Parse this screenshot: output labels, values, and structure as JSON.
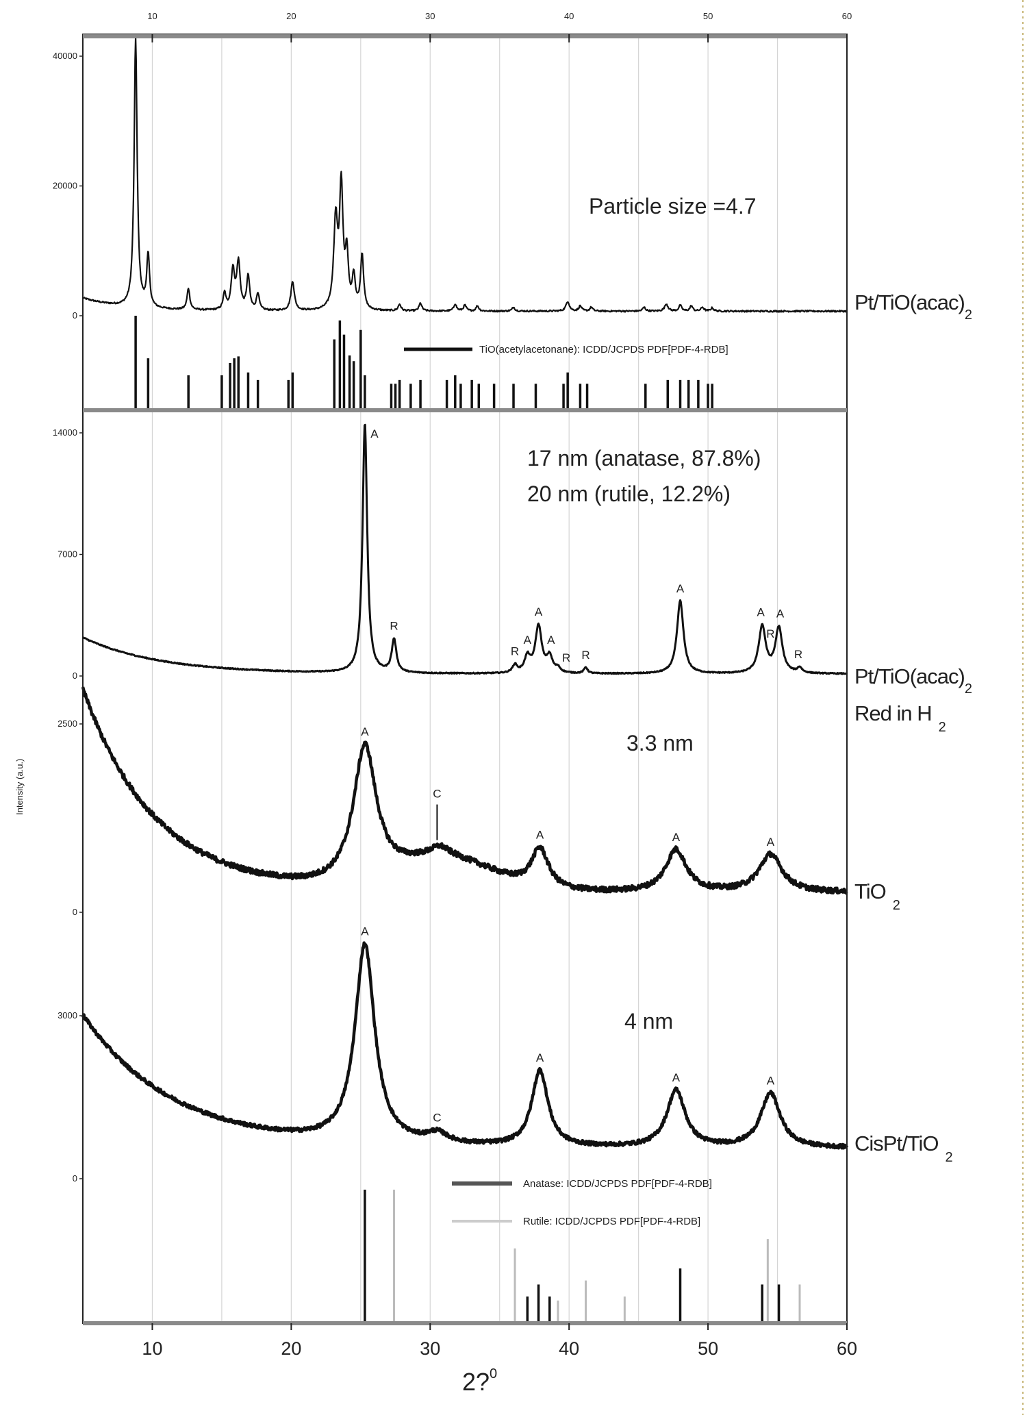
{
  "chart_data": {
    "type": "line",
    "title": "",
    "xlabel": "2?",
    "xlabel_sup": "0",
    "ylabel": "Intensity (a.u.)",
    "xlim": [
      5,
      60
    ],
    "xticks": [
      10,
      20,
      30,
      40,
      50,
      60
    ],
    "xtick_labels": [
      "10",
      "20",
      "30",
      "40",
      "50",
      "60"
    ],
    "grid": true,
    "grid_step": 5,
    "panels": [
      {
        "name": "Pt/TiO(acac)2",
        "label": {
          "main": "Pt/TiO(acac)",
          "sub": "2"
        },
        "yticks": [
          0,
          20000,
          40000
        ],
        "ytick_labels": [
          "0",
          "20000",
          "40000"
        ],
        "annotation": [
          "Particle size    =4.7"
        ],
        "background": {
          "base": 700,
          "amp": 2000,
          "decay": 3
        },
        "noise": 250,
        "peaks": [
          {
            "x": 8.8,
            "h": 41500,
            "w": 0.13
          },
          {
            "x": 9.7,
            "h": 8000,
            "w": 0.12
          },
          {
            "x": 12.6,
            "h": 3300,
            "w": 0.12
          },
          {
            "x": 15.2,
            "h": 2500,
            "w": 0.12
          },
          {
            "x": 15.8,
            "h": 6000,
            "w": 0.15
          },
          {
            "x": 16.2,
            "h": 7200,
            "w": 0.15
          },
          {
            "x": 16.9,
            "h": 5200,
            "w": 0.13
          },
          {
            "x": 17.6,
            "h": 2600,
            "w": 0.12
          },
          {
            "x": 20.1,
            "h": 4500,
            "w": 0.15
          },
          {
            "x": 23.2,
            "h": 13500,
            "w": 0.17
          },
          {
            "x": 23.6,
            "h": 18500,
            "w": 0.15
          },
          {
            "x": 24.0,
            "h": 8000,
            "w": 0.13
          },
          {
            "x": 24.5,
            "h": 5000,
            "w": 0.13
          },
          {
            "x": 25.1,
            "h": 8500,
            "w": 0.13
          },
          {
            "x": 27.8,
            "h": 1000,
            "w": 0.12
          },
          {
            "x": 29.3,
            "h": 1200,
            "w": 0.12
          },
          {
            "x": 31.8,
            "h": 1100,
            "w": 0.12
          },
          {
            "x": 32.5,
            "h": 900,
            "w": 0.12
          },
          {
            "x": 33.4,
            "h": 800,
            "w": 0.12
          },
          {
            "x": 36.0,
            "h": 600,
            "w": 0.12
          },
          {
            "x": 39.9,
            "h": 1500,
            "w": 0.15
          },
          {
            "x": 40.8,
            "h": 800,
            "w": 0.12
          },
          {
            "x": 41.6,
            "h": 600,
            "w": 0.12
          },
          {
            "x": 45.4,
            "h": 600,
            "w": 0.12
          },
          {
            "x": 47.0,
            "h": 1100,
            "w": 0.15
          },
          {
            "x": 48.0,
            "h": 900,
            "w": 0.12
          },
          {
            "x": 48.8,
            "h": 800,
            "w": 0.12
          },
          {
            "x": 49.6,
            "h": 600,
            "w": 0.12
          },
          {
            "x": 50.3,
            "h": 500,
            "w": 0.12
          }
        ],
        "peak_labels": [],
        "reference": {
          "legend": [
            {
              "text": "TiO(acetylacetonane): ICDD/JCPDS PDF[PDF-4-RDB]",
              "color": "#111111"
            }
          ],
          "bars": [
            {
              "x": 8.8,
              "h": 100,
              "color": "#111111"
            },
            {
              "x": 9.7,
              "h": 55,
              "color": "#111111"
            },
            {
              "x": 12.6,
              "h": 37,
              "color": "#111111"
            },
            {
              "x": 15.0,
              "h": 37,
              "color": "#111111"
            },
            {
              "x": 15.6,
              "h": 50,
              "color": "#111111"
            },
            {
              "x": 15.9,
              "h": 55,
              "color": "#111111"
            },
            {
              "x": 16.2,
              "h": 57,
              "color": "#111111"
            },
            {
              "x": 16.9,
              "h": 40,
              "color": "#111111"
            },
            {
              "x": 17.6,
              "h": 32,
              "color": "#111111"
            },
            {
              "x": 19.8,
              "h": 32,
              "color": "#111111"
            },
            {
              "x": 20.1,
              "h": 40,
              "color": "#111111"
            },
            {
              "x": 23.1,
              "h": 75,
              "color": "#111111"
            },
            {
              "x": 23.5,
              "h": 95,
              "color": "#111111"
            },
            {
              "x": 23.8,
              "h": 80,
              "color": "#111111"
            },
            {
              "x": 24.2,
              "h": 58,
              "color": "#111111"
            },
            {
              "x": 24.5,
              "h": 52,
              "color": "#111111"
            },
            {
              "x": 25.0,
              "h": 85,
              "color": "#111111"
            },
            {
              "x": 25.3,
              "h": 37,
              "color": "#111111"
            },
            {
              "x": 27.2,
              "h": 28,
              "color": "#111111"
            },
            {
              "x": 27.5,
              "h": 28,
              "color": "#111111"
            },
            {
              "x": 27.8,
              "h": 32,
              "color": "#111111"
            },
            {
              "x": 28.6,
              "h": 28,
              "color": "#111111"
            },
            {
              "x": 29.3,
              "h": 32,
              "color": "#111111"
            },
            {
              "x": 31.2,
              "h": 32,
              "color": "#111111"
            },
            {
              "x": 31.8,
              "h": 37,
              "color": "#111111"
            },
            {
              "x": 32.2,
              "h": 28,
              "color": "#111111"
            },
            {
              "x": 33.0,
              "h": 32,
              "color": "#111111"
            },
            {
              "x": 33.5,
              "h": 28,
              "color": "#111111"
            },
            {
              "x": 34.6,
              "h": 28,
              "color": "#111111"
            },
            {
              "x": 36.0,
              "h": 28,
              "color": "#111111"
            },
            {
              "x": 37.6,
              "h": 28,
              "color": "#111111"
            },
            {
              "x": 39.6,
              "h": 28,
              "color": "#111111"
            },
            {
              "x": 39.9,
              "h": 40,
              "color": "#111111"
            },
            {
              "x": 40.8,
              "h": 28,
              "color": "#111111"
            },
            {
              "x": 41.3,
              "h": 28,
              "color": "#111111"
            },
            {
              "x": 45.5,
              "h": 28,
              "color": "#111111"
            },
            {
              "x": 47.1,
              "h": 32,
              "color": "#111111"
            },
            {
              "x": 48.0,
              "h": 32,
              "color": "#111111"
            },
            {
              "x": 48.6,
              "h": 32,
              "color": "#111111"
            },
            {
              "x": 49.3,
              "h": 32,
              "color": "#111111"
            },
            {
              "x": 50.0,
              "h": 28,
              "color": "#111111"
            },
            {
              "x": 50.3,
              "h": 28,
              "color": "#111111"
            }
          ]
        }
      },
      {
        "name": "Pt/TiO(acac)2 Red in H2",
        "label": {
          "main": "Pt/TiO(acac)",
          "sub": "2"
        },
        "label2": {
          "main": "Red in H",
          "sub": "2"
        },
        "yticks": [
          0,
          7000,
          14000
        ],
        "ytick_labels": [
          "0",
          "7000",
          "14000"
        ],
        "annotation": [
          "17 nm (anatase, 87.8%)",
          "20 nm (rutile, 12.2%)"
        ],
        "background": {
          "base": 120,
          "amp": 2100,
          "decay": 5.5
        },
        "noise": 60,
        "peaks": [
          {
            "x": 25.3,
            "h": 14400,
            "w": 0.2
          },
          {
            "x": 27.4,
            "h": 1900,
            "w": 0.2
          },
          {
            "x": 36.1,
            "h": 450,
            "w": 0.2
          },
          {
            "x": 37.0,
            "h": 900,
            "w": 0.25
          },
          {
            "x": 37.8,
            "h": 2700,
            "w": 0.28
          },
          {
            "x": 38.6,
            "h": 900,
            "w": 0.25
          },
          {
            "x": 39.2,
            "h": 250,
            "w": 0.2
          },
          {
            "x": 41.2,
            "h": 350,
            "w": 0.15
          },
          {
            "x": 48.0,
            "h": 4200,
            "w": 0.28
          },
          {
            "x": 53.9,
            "h": 2700,
            "w": 0.3
          },
          {
            "x": 55.1,
            "h": 2600,
            "w": 0.3
          },
          {
            "x": 56.6,
            "h": 300,
            "w": 0.2
          }
        ],
        "peak_labels": [
          {
            "x": 25.3,
            "text": "A",
            "dx": 14,
            "top": true
          },
          {
            "x": 27.4,
            "text": "R"
          },
          {
            "x": 36.1,
            "text": "R"
          },
          {
            "x": 37.0,
            "text": "A"
          },
          {
            "x": 37.8,
            "text": "A"
          },
          {
            "x": 38.7,
            "text": "A"
          },
          {
            "x": 39.8,
            "text": "R"
          },
          {
            "x": 41.2,
            "text": "R"
          },
          {
            "x": 48.0,
            "text": "A"
          },
          {
            "x": 53.8,
            "text": "A"
          },
          {
            "x": 54.5,
            "text": "R"
          },
          {
            "x": 55.2,
            "text": "A"
          },
          {
            "x": 56.5,
            "text": "R"
          }
        ]
      },
      {
        "name": "TiO2",
        "label": {
          "main": "TiO",
          "sub": "2"
        },
        "yticks": [
          0,
          2500
        ],
        "ytick_labels": [
          "0",
          "2500"
        ],
        "annotation": [
          "3.3 nm"
        ],
        "background": {
          "base": 260,
          "amp": 2700,
          "decay": 5.2,
          "hump": {
            "x": 31,
            "h": 420,
            "w": 5
          }
        },
        "noise": 70,
        "peaks": [
          {
            "x": 25.3,
            "h": 1800,
            "w": 1.0
          },
          {
            "x": 30.7,
            "h": 120,
            "w": 0.8
          },
          {
            "x": 37.9,
            "h": 520,
            "w": 0.75
          },
          {
            "x": 47.7,
            "h": 560,
            "w": 0.9
          },
          {
            "x": 54.5,
            "h": 500,
            "w": 1.0
          }
        ],
        "peak_labels": [
          {
            "x": 25.3,
            "text": "A"
          },
          {
            "x": 30.5,
            "text": "C",
            "arrow": true
          },
          {
            "x": 37.9,
            "text": "A"
          },
          {
            "x": 47.7,
            "text": "A"
          },
          {
            "x": 54.5,
            "text": "A"
          }
        ]
      },
      {
        "name": "CisPt/TiO2",
        "label": {
          "main": "CisPt/TiO",
          "sub": "2"
        },
        "yticks": [
          0,
          3000
        ],
        "ytick_labels": [
          "0",
          "3000"
        ],
        "annotation": [
          "4 nm"
        ],
        "background": {
          "base": 560,
          "amp": 2450,
          "decay": 6.5
        },
        "noise": 70,
        "peaks": [
          {
            "x": 25.3,
            "h": 3650,
            "w": 0.85
          },
          {
            "x": 30.5,
            "h": 180,
            "w": 0.9
          },
          {
            "x": 37.9,
            "h": 1400,
            "w": 0.7
          },
          {
            "x": 47.7,
            "h": 1050,
            "w": 0.8
          },
          {
            "x": 54.5,
            "h": 1000,
            "w": 0.85
          }
        ],
        "peak_labels": [
          {
            "x": 25.3,
            "text": "A"
          },
          {
            "x": 30.5,
            "text": "C"
          },
          {
            "x": 37.9,
            "text": "A"
          },
          {
            "x": 47.7,
            "text": "A"
          },
          {
            "x": 54.5,
            "text": "A"
          }
        ],
        "reference": {
          "legend": [
            {
              "text": "Anatase: ICDD/JCPDS PDF[PDF-4-RDB]",
              "color": "#111111"
            },
            {
              "text": "Rutile: ICDD/JCPDS PDF[PDF-4-RDB]",
              "color": "#bbbbbb"
            }
          ],
          "bars": [
            {
              "x": 25.3,
              "h": 100,
              "color": "#111111"
            },
            {
              "x": 37.0,
              "h": 20,
              "color": "#111111"
            },
            {
              "x": 37.8,
              "h": 29,
              "color": "#111111"
            },
            {
              "x": 38.6,
              "h": 20,
              "color": "#111111"
            },
            {
              "x": 48.0,
              "h": 41,
              "color": "#111111"
            },
            {
              "x": 53.9,
              "h": 29,
              "color": "#111111"
            },
            {
              "x": 55.1,
              "h": 29,
              "color": "#111111"
            },
            {
              "x": 27.4,
              "h": 100,
              "color": "#bbbbbb"
            },
            {
              "x": 36.1,
              "h": 56,
              "color": "#bbbbbb"
            },
            {
              "x": 39.2,
              "h": 17,
              "color": "#bbbbbb"
            },
            {
              "x": 41.2,
              "h": 32,
              "color": "#bbbbbb"
            },
            {
              "x": 44.0,
              "h": 20,
              "color": "#bbbbbb"
            },
            {
              "x": 54.3,
              "h": 63,
              "color": "#bbbbbb"
            },
            {
              "x": 56.6,
              "h": 29,
              "color": "#bbbbbb"
            }
          ]
        }
      }
    ]
  }
}
